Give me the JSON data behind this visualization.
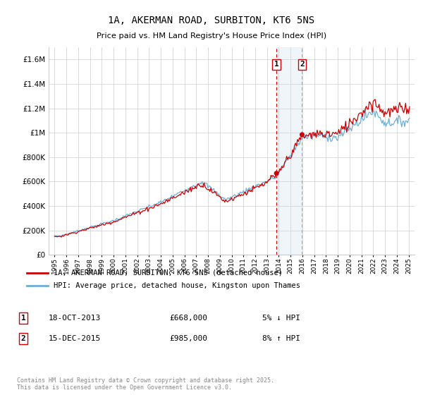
{
  "title": "1A, AKERMAN ROAD, SURBITON, KT6 5NS",
  "subtitle": "Price paid vs. HM Land Registry's House Price Index (HPI)",
  "legend_line1": "1A, AKERMAN ROAD, SURBITON, KT6 5NS (detached house)",
  "legend_line2": "HPI: Average price, detached house, Kingston upon Thames",
  "transaction1_date": "18-OCT-2013",
  "transaction1_price": "£668,000",
  "transaction1_hpi": "5% ↓ HPI",
  "transaction2_date": "15-DEC-2015",
  "transaction2_price": "£985,000",
  "transaction2_hpi": "8% ↑ HPI",
  "footnote": "Contains HM Land Registry data © Crown copyright and database right 2025.\nThis data is licensed under the Open Government Licence v3.0.",
  "hpi_color": "#6baed6",
  "price_color": "#cc0000",
  "shade_color": "#c6dbef",
  "dashed_color": "#cc0000",
  "ylim": [
    0,
    1700000
  ],
  "yticks": [
    0,
    200000,
    400000,
    600000,
    800000,
    1000000,
    1200000,
    1400000,
    1600000
  ],
  "xlim_start": 1994.5,
  "xlim_end": 2025.5,
  "transaction1_year": 2013.8,
  "transaction2_year": 2015.97,
  "transaction1_price_val": 668000,
  "transaction2_price_val": 985000
}
